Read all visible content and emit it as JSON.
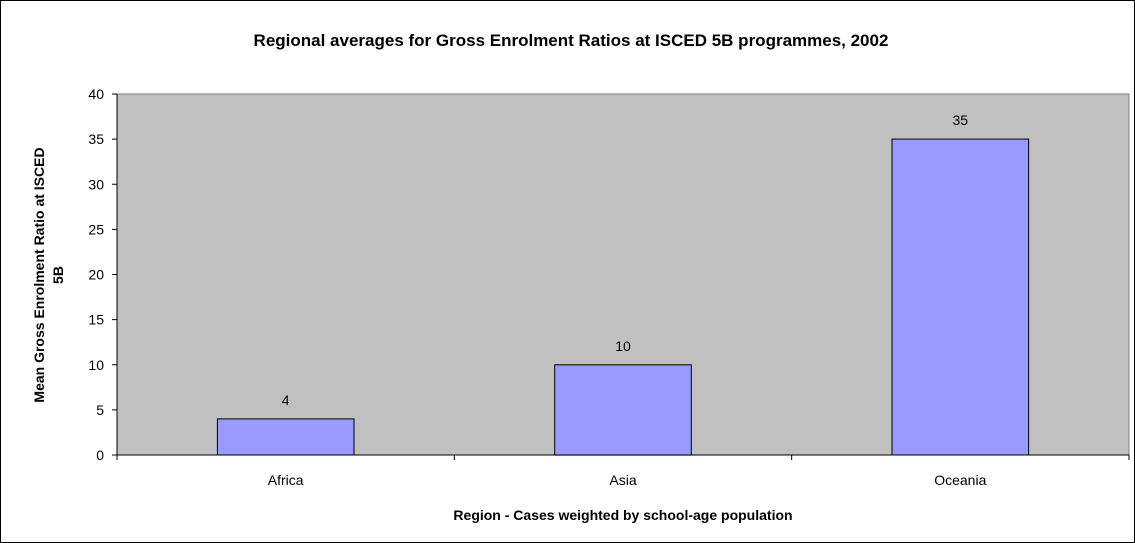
{
  "chart_data": {
    "type": "bar",
    "title": "Regional averages for Gross Enrolment Ratios at ISCED 5B programmes, 2002",
    "xlabel": "Region - Cases weighted by school-age population",
    "ylabel_lines": [
      "Mean Gross Enrolment Ratio at ISCED",
      "5B"
    ],
    "categories": [
      "Africa",
      "Asia",
      "Oceania"
    ],
    "values": [
      4,
      10,
      35
    ],
    "data_labels": [
      "4",
      "10",
      "35"
    ],
    "ylim": [
      0,
      40
    ],
    "yticks": [
      0,
      5,
      10,
      15,
      20,
      25,
      30,
      35,
      40
    ],
    "ytick_labels": [
      "0",
      "5",
      "10",
      "15",
      "20",
      "25",
      "30",
      "35",
      "40"
    ],
    "grid": false,
    "legend": "none",
    "colors": {
      "plot_background": "#c0c0c0",
      "bar_fill": "#9999ff",
      "bar_stroke": "#000000",
      "axis": "#000000"
    }
  }
}
